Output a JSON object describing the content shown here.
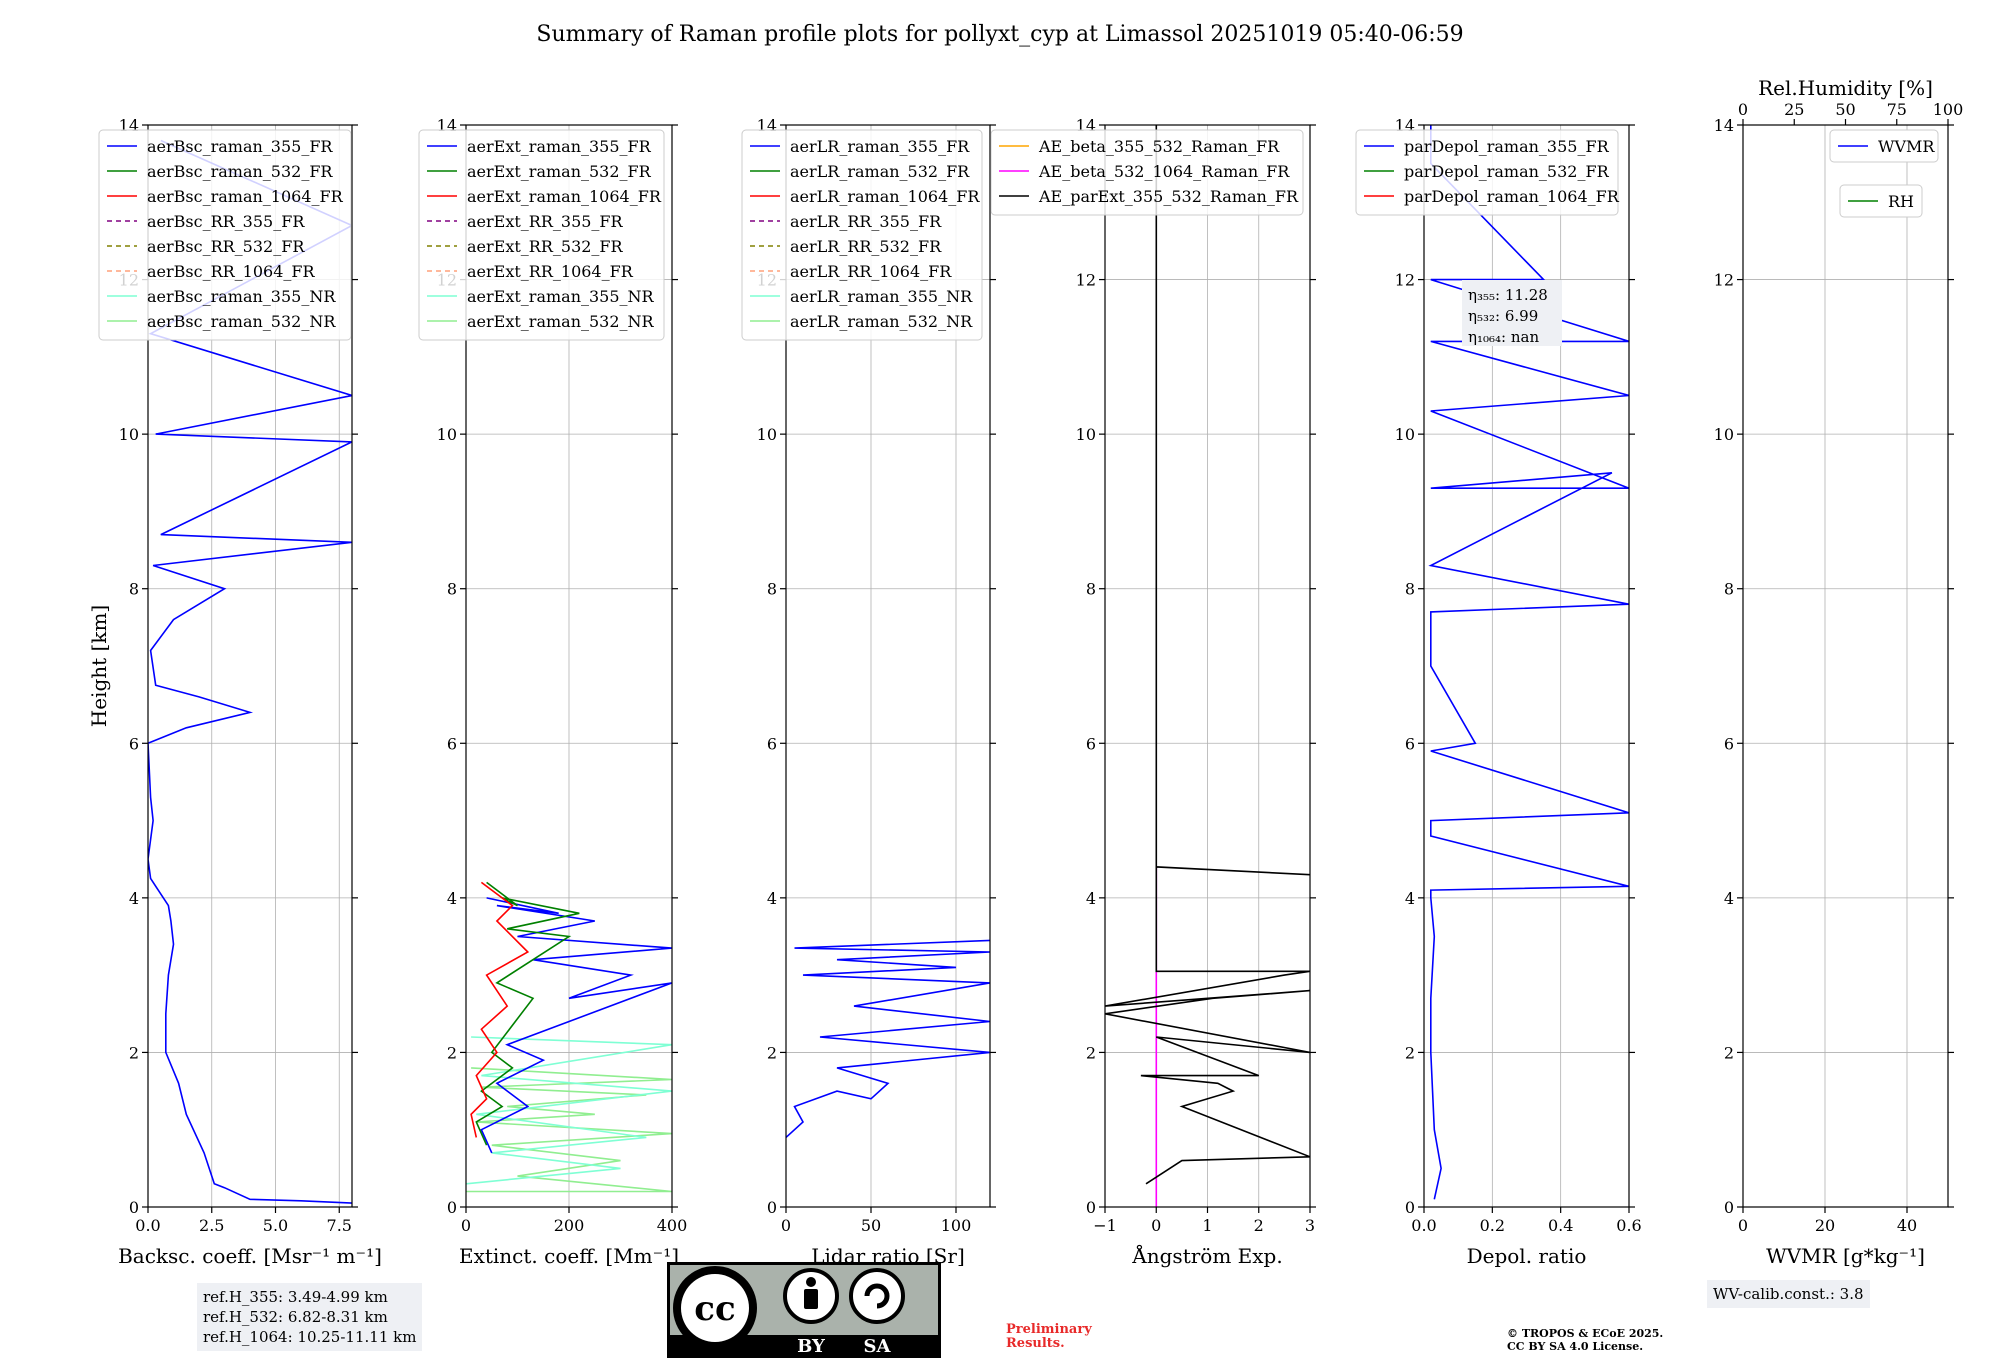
{
  "title": "Summary of Raman profile plots for pollyxt_cyp at Limassol 20251019 05:40-06:59",
  "ylabel": "Height [km]",
  "chart_data": [
    {
      "type": "line",
      "name": "backscatter",
      "xlabel": "Backsc. coeff. [Msr⁻¹ m⁻¹]",
      "xlim": [
        0,
        8
      ],
      "ylim": [
        0,
        14
      ],
      "xticks": [
        0,
        2.5,
        5,
        7.5
      ],
      "xtick_labels": [
        "0.0",
        "2.5",
        "5.0",
        "7.5"
      ],
      "yticks": [
        0,
        2,
        4,
        6,
        8,
        10,
        12,
        14
      ],
      "legend": [
        "aerBsc_raman_355_FR",
        "aerBsc_raman_532_FR",
        "aerBsc_raman_1064_FR",
        "aerBsc_RR_355_FR",
        "aerBsc_RR_532_FR",
        "aerBsc_RR_1064_FR",
        "aerBsc_raman_355_NR",
        "aerBsc_raman_532_NR"
      ],
      "series": [
        {
          "name": "aerBsc_raman_355_FR",
          "color": "#0000ff",
          "style": "solid",
          "x": [
            8,
            6,
            4,
            3,
            2.6,
            2.2,
            1.5,
            1.2,
            0.7,
            0.7,
            0.8,
            1.0,
            0.9,
            0.8,
            0.4,
            0.1,
            0.0,
            0.2,
            0.1,
            0.0,
            1.5,
            4.0,
            2.0,
            0.3,
            0.1,
            1.0,
            3.0,
            0.2,
            8,
            0.5,
            8,
            0.3,
            8,
            0.1,
            8,
            0.5
          ],
          "y": [
            0.05,
            0.08,
            0.1,
            0.25,
            0.3,
            0.7,
            1.2,
            1.6,
            2.0,
            2.5,
            3.0,
            3.4,
            3.7,
            3.9,
            4.1,
            4.25,
            4.5,
            5.0,
            5.3,
            6.0,
            6.2,
            6.4,
            6.6,
            6.75,
            7.2,
            7.6,
            8.0,
            8.3,
            8.6,
            8.7,
            9.9,
            10.0,
            10.5,
            11.3,
            12.7,
            13.8
          ]
        }
      ]
    },
    {
      "type": "line",
      "name": "extinction",
      "xlabel": "Extinct. coeff. [Mm⁻¹]",
      "xlim": [
        0,
        400
      ],
      "ylim": [
        0,
        14
      ],
      "xticks": [
        0,
        200,
        400
      ],
      "yticks": [
        0,
        2,
        4,
        6,
        8,
        10,
        12,
        14
      ],
      "legend": [
        "aerExt_raman_355_FR",
        "aerExt_raman_532_FR",
        "aerExt_raman_1064_FR",
        "aerExt_RR_355_FR",
        "aerExt_RR_532_FR",
        "aerExt_RR_1064_FR",
        "aerExt_raman_355_NR",
        "aerExt_raman_532_NR"
      ],
      "series": [
        {
          "name": "aerExt_raman_532_NR",
          "color": "#90ee90",
          "style": "solid",
          "x": [
            0,
            400,
            100,
            300,
            50,
            400,
            20,
            250,
            80,
            350,
            30,
            400,
            10
          ],
          "y": [
            0.2,
            0.2,
            0.4,
            0.6,
            0.8,
            0.95,
            1.1,
            1.2,
            1.3,
            1.45,
            1.55,
            1.65,
            1.8
          ]
        },
        {
          "name": "aerExt_raman_355_NR",
          "color": "#7fffd4",
          "style": "solid",
          "x": [
            0,
            300,
            50,
            350,
            20,
            400,
            30,
            400,
            10
          ],
          "y": [
            0.3,
            0.5,
            0.7,
            0.9,
            1.2,
            1.5,
            1.7,
            2.1,
            2.2
          ]
        },
        {
          "name": "aerExt_raman_355_FR",
          "color": "#0000ff",
          "style": "solid",
          "x": [
            50,
            30,
            120,
            60,
            150,
            80,
            400,
            200,
            320,
            130,
            400,
            100,
            250,
            60,
            180,
            40
          ],
          "y": [
            0.7,
            1.0,
            1.3,
            1.6,
            1.9,
            2.1,
            2.9,
            2.7,
            3.0,
            3.2,
            3.35,
            3.5,
            3.7,
            3.9,
            3.8,
            4.0
          ]
        },
        {
          "name": "aerExt_raman_532_FR",
          "color": "#008000",
          "style": "solid",
          "x": [
            40,
            20,
            70,
            30,
            90,
            50,
            130,
            60,
            200,
            80,
            220,
            70,
            100,
            40
          ],
          "y": [
            0.8,
            1.1,
            1.3,
            1.5,
            1.8,
            2.0,
            2.7,
            2.9,
            3.5,
            3.6,
            3.8,
            4.0,
            3.9,
            4.2
          ]
        },
        {
          "name": "aerExt_raman_1064_FR",
          "color": "#ff0000",
          "style": "solid",
          "x": [
            20,
            10,
            40,
            20,
            60,
            30,
            80,
            40,
            120,
            60,
            90,
            30
          ],
          "y": [
            0.9,
            1.2,
            1.4,
            1.7,
            2.0,
            2.3,
            2.6,
            3.0,
            3.3,
            3.7,
            3.9,
            4.2
          ]
        }
      ]
    },
    {
      "type": "line",
      "name": "lidar_ratio",
      "xlabel": "Lidar ratio [Sr]",
      "xlim": [
        0,
        120
      ],
      "ylim": [
        0,
        14
      ],
      "xticks": [
        0,
        50,
        100
      ],
      "yticks": [
        0,
        2,
        4,
        6,
        8,
        10,
        12,
        14
      ],
      "legend": [
        "aerLR_raman_355_FR",
        "aerLR_raman_532_FR",
        "aerLR_raman_1064_FR",
        "aerLR_RR_355_FR",
        "aerLR_RR_532_FR",
        "aerLR_RR_1064_FR",
        "aerLR_raman_355_NR",
        "aerLR_raman_532_NR"
      ],
      "series": [
        {
          "name": "aerLR_raman_355_FR",
          "color": "#0000ff",
          "style": "solid",
          "x": [
            0,
            10,
            5,
            30,
            50,
            60,
            30,
            120,
            20,
            120,
            40,
            120,
            10,
            100,
            30,
            120,
            5,
            120
          ],
          "y": [
            0.9,
            1.1,
            1.3,
            1.5,
            1.4,
            1.6,
            1.8,
            2.0,
            2.2,
            2.4,
            2.6,
            2.9,
            3.0,
            3.1,
            3.2,
            3.3,
            3.35,
            3.45
          ]
        }
      ]
    },
    {
      "type": "line",
      "name": "angstrom",
      "xlabel": "Ångström Exp.",
      "xlim": [
        -1,
        3
      ],
      "ylim": [
        0,
        14
      ],
      "xticks": [
        -1,
        0,
        1,
        2,
        3
      ],
      "yticks": [
        0,
        2,
        4,
        6,
        8,
        10,
        12,
        14
      ],
      "legend": [
        "AE_beta_355_532_Raman_FR",
        "AE_beta_532_1064_Raman_FR",
        "AE_parExt_355_532_Raman_FR"
      ],
      "series": [
        {
          "name": "AE_beta_532_1064_Raman_FR",
          "color": "#ff00ff",
          "style": "solid",
          "x": [
            0,
            0
          ],
          "y": [
            0,
            4.4
          ]
        },
        {
          "name": "AE_parExt_355_532_Raman_FR",
          "color": "#000000",
          "style": "solid",
          "x": [
            -0.2,
            0.5,
            3,
            0.5,
            1.5,
            1.2,
            -0.3,
            2.0,
            0,
            3,
            -1,
            1.1,
            3,
            -1,
            2.5,
            3,
            0,
            0,
            3,
            0,
            0
          ],
          "y": [
            0.3,
            0.6,
            0.65,
            1.3,
            1.5,
            1.6,
            1.7,
            1.7,
            2.2,
            2.0,
            2.5,
            2.7,
            2.8,
            2.6,
            3.0,
            3.05,
            3.05,
            4.4,
            4.3,
            4.4,
            14
          ]
        }
      ]
    },
    {
      "type": "line",
      "name": "depol",
      "xlabel": "Depol. ratio",
      "xlim": [
        0,
        0.6
      ],
      "ylim": [
        0,
        14
      ],
      "xticks": [
        0,
        0.2,
        0.4,
        0.6
      ],
      "xtick_labels": [
        "0.0",
        "0.2",
        "0.4",
        "0.6"
      ],
      "yticks": [
        0,
        2,
        4,
        6,
        8,
        10,
        12,
        14
      ],
      "legend": [
        "parDepol_raman_355_FR",
        "parDepol_raman_532_FR",
        "parDepol_raman_1064_FR"
      ],
      "annotation": [
        "η₃₅₅: 11.28",
        "η₅₃₂: 6.99",
        "η₁₀₆₄: nan"
      ],
      "series": [
        {
          "name": "parDepol_raman_355_FR",
          "color": "#0000ff",
          "style": "solid",
          "x": [
            0.03,
            0.05,
            0.03,
            0.02,
            0.02,
            0.03,
            0.02,
            0.02,
            0.6,
            0.02,
            0.02,
            0.6,
            0.02,
            0.15,
            0.02,
            0.02,
            0.6,
            0.02,
            0.55,
            0.02,
            0.6,
            0.02,
            0.6,
            0.02,
            0.6,
            0.02,
            0.35,
            0.02,
            0.02
          ],
          "y": [
            0.1,
            0.5,
            1.0,
            2.0,
            2.7,
            3.5,
            4.0,
            4.1,
            4.15,
            4.8,
            5.0,
            5.1,
            5.9,
            6.0,
            7.0,
            7.7,
            7.8,
            8.3,
            9.5,
            9.3,
            9.3,
            10.3,
            10.5,
            11.2,
            11.2,
            12.0,
            12.0,
            13.5,
            14
          ]
        }
      ]
    },
    {
      "type": "line",
      "name": "wvmr",
      "xlabel": "WVMR [g*kg⁻¹]",
      "x2label": "Rel.Humidity [%]",
      "xlim": [
        0,
        50
      ],
      "x2lim": [
        0,
        100
      ],
      "ylim": [
        0,
        14
      ],
      "xticks": [
        0,
        20,
        40
      ],
      "x2ticks": [
        0,
        25,
        50,
        75,
        100
      ],
      "yticks": [
        0,
        2,
        4,
        6,
        8,
        10,
        12,
        14
      ],
      "legend": [
        "WVMR",
        "RH"
      ],
      "series": []
    }
  ],
  "ref_box": [
    "ref.H_355: 3.49-4.99 km",
    "ref.H_532: 6.82-8.31 km",
    "ref.H_1064: 10.25-11.11 km"
  ],
  "wv_box": "WV-calib.const.: 3.8",
  "preliminary": [
    "Preliminary",
    "Results."
  ],
  "copyright": [
    "© TROPOS & ECoE 2025.",
    "CC BY SA 4.0 License."
  ],
  "license_badge": [
    "BY",
    "SA"
  ],
  "series_colors": {
    "355_FR": "#0000ff",
    "532_FR": "#008000",
    "1064_FR": "#ff0000",
    "RR_355": "#800080",
    "RR_532": "#808000",
    "RR_1064": "#ffa07a",
    "355_NR": "#7fffd4",
    "532_NR": "#90ee90",
    "AE_355_532": "#ffa500",
    "AE_532_1064": "#ff00ff",
    "AE_par": "#000000"
  }
}
